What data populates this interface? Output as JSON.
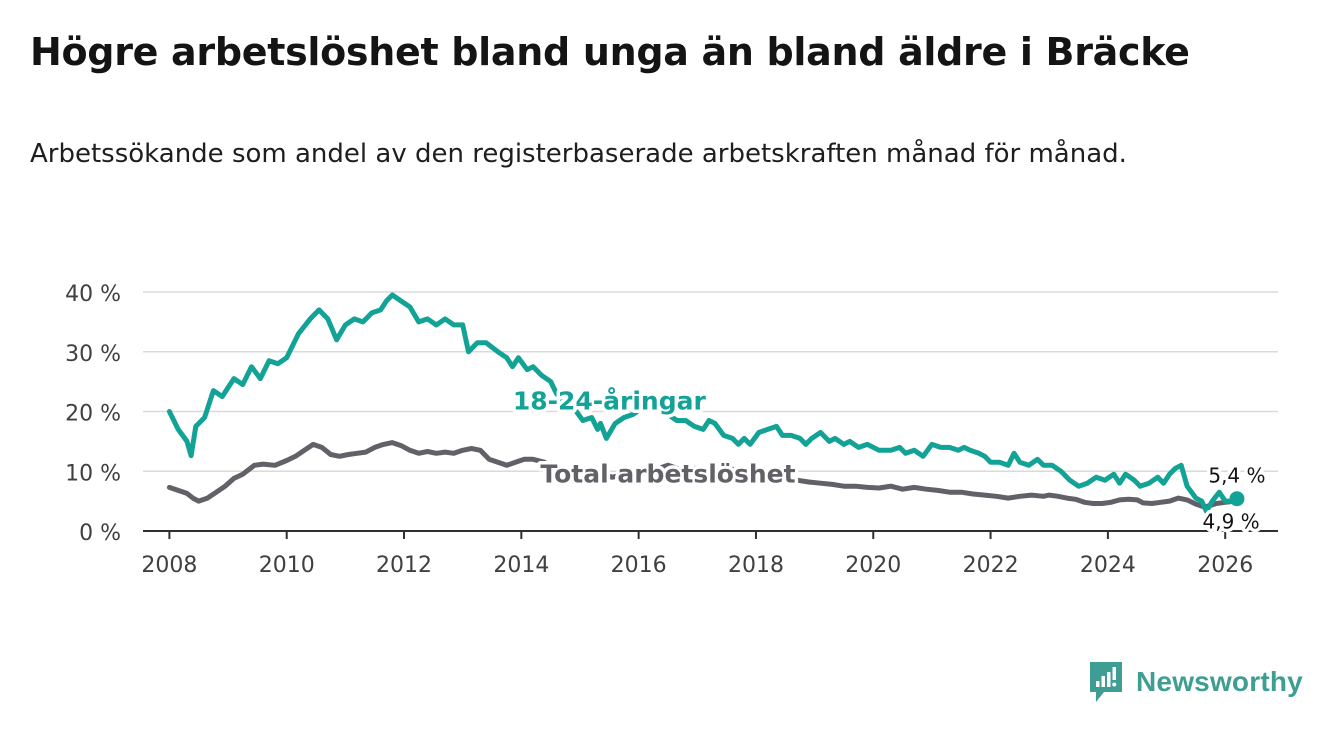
{
  "header": {
    "title": "Högre arbetslöshet bland unga än bland äldre i Bräcke",
    "subtitle": "Arbetssökande som andel av den registerbaserade arbetskraften månad för månad."
  },
  "brand": {
    "name": "Newsworthy",
    "color": "#3e9e94"
  },
  "chart_data": {
    "type": "line",
    "title": "Högre arbetslöshet bland unga än bland äldre i Bräcke",
    "subtitle": "Arbetssökande som andel av den registerbaserade arbetskraften månad för månad.",
    "xlabel": "",
    "ylabel": "",
    "xlim": [
      2007.55,
      2026.9
    ],
    "ylim": [
      0,
      40
    ],
    "x_ticks": [
      2008,
      2010,
      2012,
      2014,
      2016,
      2018,
      2020,
      2022,
      2024,
      2026
    ],
    "x_tick_labels": [
      "2008",
      "2010",
      "2012",
      "2014",
      "2016",
      "2018",
      "2020",
      "2022",
      "2024",
      "2026"
    ],
    "y_ticks": [
      0,
      10,
      20,
      30,
      40
    ],
    "y_tick_labels": [
      "0 %",
      "10 %",
      "20 %",
      "30 %",
      "40 %"
    ],
    "grid": true,
    "series": [
      {
        "name": "18-24-åringar",
        "label": "18-24-åringar",
        "color": "#13a396",
        "last_value_label": "5,4 %",
        "points": [
          [
            2008.0,
            20.0
          ],
          [
            2008.15,
            17.0
          ],
          [
            2008.3,
            15.0
          ],
          [
            2008.37,
            12.6
          ],
          [
            2008.45,
            17.5
          ],
          [
            2008.6,
            19.0
          ],
          [
            2008.75,
            23.5
          ],
          [
            2008.9,
            22.5
          ],
          [
            2009.1,
            25.5
          ],
          [
            2009.25,
            24.5
          ],
          [
            2009.4,
            27.5
          ],
          [
            2009.55,
            25.5
          ],
          [
            2009.7,
            28.5
          ],
          [
            2009.85,
            28.0
          ],
          [
            2010.0,
            29.0
          ],
          [
            2010.2,
            33.0
          ],
          [
            2010.4,
            35.5
          ],
          [
            2010.55,
            37.0
          ],
          [
            2010.7,
            35.5
          ],
          [
            2010.85,
            32.0
          ],
          [
            2011.0,
            34.5
          ],
          [
            2011.15,
            35.5
          ],
          [
            2011.3,
            35.0
          ],
          [
            2011.45,
            36.5
          ],
          [
            2011.6,
            37.0
          ],
          [
            2011.7,
            38.5
          ],
          [
            2011.8,
            39.5
          ],
          [
            2011.95,
            38.5
          ],
          [
            2012.1,
            37.5
          ],
          [
            2012.25,
            35.0
          ],
          [
            2012.4,
            35.5
          ],
          [
            2012.55,
            34.5
          ],
          [
            2012.7,
            35.5
          ],
          [
            2012.85,
            34.5
          ],
          [
            2013.0,
            34.5
          ],
          [
            2013.1,
            30.0
          ],
          [
            2013.25,
            31.5
          ],
          [
            2013.4,
            31.5
          ],
          [
            2013.6,
            30.0
          ],
          [
            2013.75,
            29.0
          ],
          [
            2013.85,
            27.5
          ],
          [
            2013.95,
            29.0
          ],
          [
            2014.1,
            27.0
          ],
          [
            2014.2,
            27.5
          ],
          [
            2014.35,
            26.0
          ],
          [
            2014.5,
            25.0
          ],
          [
            2014.6,
            23.0
          ],
          [
            2014.75,
            21.5
          ],
          [
            2014.9,
            20.5
          ],
          [
            2015.05,
            18.5
          ],
          [
            2015.2,
            19.0
          ],
          [
            2015.3,
            17.0
          ],
          [
            2015.35,
            18.0
          ],
          [
            2015.45,
            15.5
          ],
          [
            2015.6,
            18.0
          ],
          [
            2015.75,
            19.0
          ],
          [
            2015.9,
            19.5
          ],
          [
            2016.05,
            20.5
          ],
          [
            2016.2,
            21.0
          ],
          [
            2016.35,
            20.5
          ],
          [
            2016.5,
            19.5
          ],
          [
            2016.65,
            18.5
          ],
          [
            2016.8,
            18.5
          ],
          [
            2016.95,
            17.5
          ],
          [
            2017.1,
            17.0
          ],
          [
            2017.2,
            18.5
          ],
          [
            2017.3,
            18.0
          ],
          [
            2017.45,
            16.0
          ],
          [
            2017.6,
            15.5
          ],
          [
            2017.7,
            14.5
          ],
          [
            2017.8,
            15.5
          ],
          [
            2017.9,
            14.5
          ],
          [
            2018.05,
            16.5
          ],
          [
            2018.2,
            17.0
          ],
          [
            2018.35,
            17.5
          ],
          [
            2018.45,
            16.0
          ],
          [
            2018.6,
            16.0
          ],
          [
            2018.75,
            15.5
          ],
          [
            2018.85,
            14.5
          ],
          [
            2018.95,
            15.5
          ],
          [
            2019.1,
            16.5
          ],
          [
            2019.25,
            15.0
          ],
          [
            2019.35,
            15.5
          ],
          [
            2019.5,
            14.5
          ],
          [
            2019.6,
            15.0
          ],
          [
            2019.75,
            14.0
          ],
          [
            2019.9,
            14.5
          ],
          [
            2020.1,
            13.5
          ],
          [
            2020.3,
            13.5
          ],
          [
            2020.45,
            14.0
          ],
          [
            2020.55,
            13.0
          ],
          [
            2020.7,
            13.5
          ],
          [
            2020.85,
            12.5
          ],
          [
            2021.0,
            14.5
          ],
          [
            2021.15,
            14.0
          ],
          [
            2021.3,
            14.0
          ],
          [
            2021.45,
            13.5
          ],
          [
            2021.55,
            14.0
          ],
          [
            2021.65,
            13.5
          ],
          [
            2021.8,
            13.0
          ],
          [
            2021.9,
            12.5
          ],
          [
            2022.0,
            11.5
          ],
          [
            2022.15,
            11.5
          ],
          [
            2022.3,
            11.0
          ],
          [
            2022.4,
            13.0
          ],
          [
            2022.5,
            11.5
          ],
          [
            2022.65,
            11.0
          ],
          [
            2022.8,
            12.0
          ],
          [
            2022.9,
            11.0
          ],
          [
            2023.05,
            11.0
          ],
          [
            2023.2,
            10.0
          ],
          [
            2023.35,
            8.5
          ],
          [
            2023.5,
            7.5
          ],
          [
            2023.65,
            8.0
          ],
          [
            2023.8,
            9.0
          ],
          [
            2023.95,
            8.5
          ],
          [
            2024.1,
            9.5
          ],
          [
            2024.2,
            8.0
          ],
          [
            2024.3,
            9.5
          ],
          [
            2024.45,
            8.5
          ],
          [
            2024.55,
            7.5
          ],
          [
            2024.7,
            8.0
          ],
          [
            2024.85,
            9.0
          ],
          [
            2024.95,
            8.0
          ],
          [
            2025.05,
            9.5
          ],
          [
            2025.15,
            10.5
          ],
          [
            2025.25,
            11.0
          ],
          [
            2025.35,
            7.5
          ],
          [
            2025.5,
            5.5
          ],
          [
            2025.6,
            5.0
          ],
          [
            2025.68,
            3.3
          ],
          [
            2025.78,
            5.0
          ],
          [
            2025.9,
            6.5
          ],
          [
            2026.0,
            5.0
          ],
          [
            2026.12,
            5.0
          ],
          [
            2026.2,
            5.4
          ]
        ]
      },
      {
        "name": "Total arbetslöshet",
        "label": "Total arbetslöshet",
        "color": "#616168",
        "last_value_label": "4,9 %",
        "points": [
          [
            2008.0,
            7.3
          ],
          [
            2008.15,
            6.8
          ],
          [
            2008.3,
            6.3
          ],
          [
            2008.4,
            5.5
          ],
          [
            2008.5,
            5.0
          ],
          [
            2008.65,
            5.5
          ],
          [
            2008.8,
            6.5
          ],
          [
            2008.95,
            7.5
          ],
          [
            2009.1,
            8.8
          ],
          [
            2009.25,
            9.5
          ],
          [
            2009.45,
            11.0
          ],
          [
            2009.6,
            11.2
          ],
          [
            2009.8,
            11.0
          ],
          [
            2010.0,
            11.8
          ],
          [
            2010.15,
            12.5
          ],
          [
            2010.3,
            13.5
          ],
          [
            2010.45,
            14.5
          ],
          [
            2010.6,
            14.0
          ],
          [
            2010.75,
            12.8
          ],
          [
            2010.9,
            12.5
          ],
          [
            2011.05,
            12.8
          ],
          [
            2011.2,
            13.0
          ],
          [
            2011.35,
            13.2
          ],
          [
            2011.5,
            14.0
          ],
          [
            2011.65,
            14.5
          ],
          [
            2011.8,
            14.8
          ],
          [
            2011.95,
            14.3
          ],
          [
            2012.1,
            13.5
          ],
          [
            2012.25,
            13.0
          ],
          [
            2012.4,
            13.3
          ],
          [
            2012.55,
            13.0
          ],
          [
            2012.7,
            13.2
          ],
          [
            2012.85,
            13.0
          ],
          [
            2013.0,
            13.5
          ],
          [
            2013.15,
            13.8
          ],
          [
            2013.3,
            13.5
          ],
          [
            2013.45,
            12.0
          ],
          [
            2013.6,
            11.5
          ],
          [
            2013.75,
            11.0
          ],
          [
            2013.9,
            11.5
          ],
          [
            2014.05,
            12.0
          ],
          [
            2014.2,
            12.0
          ],
          [
            2014.4,
            11.5
          ],
          [
            2014.5,
            9.5
          ],
          [
            2014.65,
            9.0
          ],
          [
            2014.8,
            8.8
          ],
          [
            2014.95,
            9.0
          ],
          [
            2015.1,
            9.5
          ],
          [
            2015.25,
            9.8
          ],
          [
            2015.4,
            9.5
          ],
          [
            2015.55,
            9.0
          ],
          [
            2015.65,
            9.2
          ],
          [
            2015.75,
            8.5
          ],
          [
            2015.9,
            8.8
          ],
          [
            2016.05,
            9.5
          ],
          [
            2016.2,
            10.0
          ],
          [
            2016.35,
            10.5
          ],
          [
            2016.5,
            11.0
          ],
          [
            2016.65,
            10.5
          ],
          [
            2016.8,
            10.0
          ],
          [
            2016.95,
            10.5
          ],
          [
            2017.1,
            10.0
          ],
          [
            2017.25,
            10.5
          ],
          [
            2017.4,
            11.0
          ],
          [
            2017.55,
            10.5
          ],
          [
            2017.7,
            10.0
          ],
          [
            2017.85,
            9.5
          ],
          [
            2018.0,
            9.2
          ],
          [
            2018.15,
            9.0
          ],
          [
            2018.3,
            8.8
          ],
          [
            2018.5,
            8.5
          ],
          [
            2018.7,
            8.5
          ],
          [
            2018.9,
            8.2
          ],
          [
            2019.1,
            8.0
          ],
          [
            2019.3,
            7.8
          ],
          [
            2019.5,
            7.5
          ],
          [
            2019.7,
            7.5
          ],
          [
            2019.9,
            7.3
          ],
          [
            2020.1,
            7.2
          ],
          [
            2020.3,
            7.5
          ],
          [
            2020.5,
            7.0
          ],
          [
            2020.7,
            7.3
          ],
          [
            2020.9,
            7.0
          ],
          [
            2021.1,
            6.8
          ],
          [
            2021.3,
            6.5
          ],
          [
            2021.5,
            6.5
          ],
          [
            2021.7,
            6.2
          ],
          [
            2021.9,
            6.0
          ],
          [
            2022.1,
            5.8
          ],
          [
            2022.3,
            5.5
          ],
          [
            2022.5,
            5.8
          ],
          [
            2022.7,
            6.0
          ],
          [
            2022.9,
            5.8
          ],
          [
            2023.0,
            6.0
          ],
          [
            2023.15,
            5.8
          ],
          [
            2023.3,
            5.5
          ],
          [
            2023.45,
            5.3
          ],
          [
            2023.6,
            4.8
          ],
          [
            2023.75,
            4.6
          ],
          [
            2023.9,
            4.6
          ],
          [
            2024.05,
            4.8
          ],
          [
            2024.2,
            5.2
          ],
          [
            2024.35,
            5.3
          ],
          [
            2024.5,
            5.2
          ],
          [
            2024.6,
            4.7
          ],
          [
            2024.75,
            4.6
          ],
          [
            2024.9,
            4.8
          ],
          [
            2025.05,
            5.0
          ],
          [
            2025.2,
            5.5
          ],
          [
            2025.35,
            5.2
          ],
          [
            2025.5,
            4.5
          ],
          [
            2025.65,
            4.0
          ],
          [
            2025.75,
            4.3
          ],
          [
            2025.85,
            4.6
          ],
          [
            2026.0,
            4.8
          ],
          [
            2026.1,
            4.9
          ]
        ]
      }
    ],
    "annotations": [
      {
        "text": "18-24-åringar",
        "series": "18-24-åringar",
        "x": 2015.5,
        "y": 20.3
      },
      {
        "text": "Total arbetslöshet",
        "series": "Total arbetslöshet",
        "x": 2016.5,
        "y": 8.1
      }
    ]
  }
}
